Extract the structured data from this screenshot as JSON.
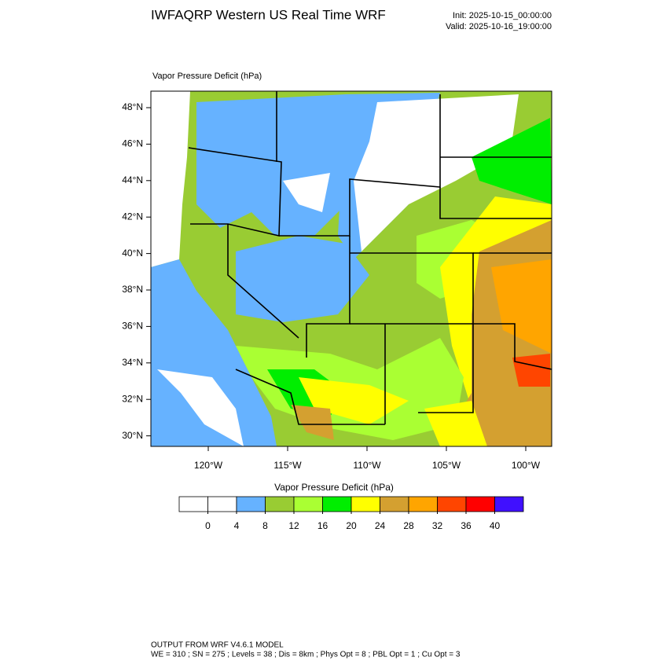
{
  "header": {
    "title": "IWFAQRP Western US Real Time WRF",
    "init": "Init: 2025-10-15_00:00:00",
    "valid": "Valid: 2025-10-16_19:00:00"
  },
  "map": {
    "title": "Vapor Pressure Deficit   (hPa)",
    "lat_labels": [
      "48°N",
      "46°N",
      "44°N",
      "42°N",
      "40°N",
      "38°N",
      "36°N",
      "34°N",
      "32°N",
      "30°N"
    ],
    "lon_labels": [
      "120°W",
      "115°W",
      "110°W",
      "105°W",
      "100°W"
    ]
  },
  "colorbar": {
    "title": "Vapor Pressure Deficit  (hPa)",
    "colors": [
      "#ffffff",
      "#ffffff",
      "#66b2ff",
      "#99cc33",
      "#aaff33",
      "#00ee00",
      "#ffff00",
      "#d4a030",
      "#ffa500",
      "#ff4500",
      "#ff0000",
      "#4010ff"
    ],
    "ticks": [
      0,
      4,
      8,
      12,
      16,
      20,
      24,
      28,
      32,
      36,
      40
    ]
  },
  "footer": {
    "line1": "OUTPUT FROM WRF V4.6.1 MODEL",
    "line2": "WE = 310 ; SN = 275 ; Levels = 38 ; Dis = 8km ; Phys Opt = 8 ; PBL Opt = 1 ; Cu Opt = 3"
  }
}
